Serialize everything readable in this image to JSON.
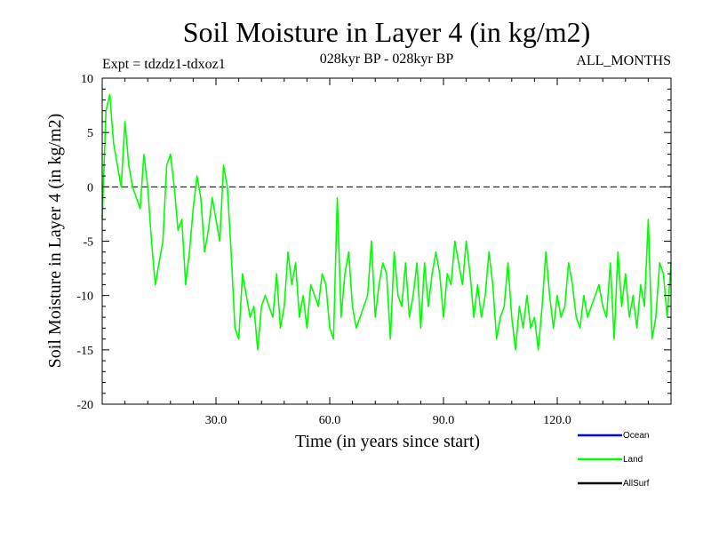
{
  "chart_data": {
    "type": "line",
    "title": "Soil Moisture in Layer 4 (in kg/m2)",
    "subtitle_left": "Expt = tdzdz1-tdxoz1",
    "subtitle_center": "028kyr BP - 028kyr BP",
    "subtitle_right": "ALL_MONTHS",
    "xlabel": "Time (in years since start)",
    "ylabel": "Soil Moisture in Layer 4 (in kg/m2)",
    "xlim": [
      0,
      150
    ],
    "ylim": [
      -20,
      10
    ],
    "x_ticks": [
      30,
      60,
      90,
      120
    ],
    "x_tick_labels": [
      "30.0",
      "60.0",
      "90.0",
      "120.0"
    ],
    "y_ticks": [
      -20,
      -15,
      -10,
      -5,
      0,
      5,
      10
    ],
    "y_tick_labels": [
      "-20",
      "-15",
      "-10",
      "-5",
      "0",
      "5",
      "10"
    ],
    "reference_line": 0,
    "legend_position": "bottom-right",
    "series": [
      {
        "name": "Ocean",
        "color": "#0000ff",
        "values": []
      },
      {
        "name": "Land",
        "color": "#00ff00",
        "x_start": 0,
        "x_step": 1,
        "values": [
          -3,
          7,
          8.5,
          4,
          2,
          0,
          6,
          2,
          0,
          -1,
          -2,
          3,
          0,
          -5,
          -9,
          -7,
          -5,
          2,
          3,
          0,
          -4,
          -3,
          -9,
          -6,
          -2,
          1,
          -1,
          -6,
          -4,
          -1,
          -3,
          -5,
          2,
          0,
          -6,
          -13,
          -14,
          -8,
          -10,
          -12,
          -11,
          -15,
          -11,
          -10,
          -11,
          -12,
          -8,
          -13,
          -11,
          -6,
          -9,
          -7,
          -12,
          -10,
          -13,
          -9,
          -10,
          -11,
          -8,
          -9,
          -13,
          -14,
          -1,
          -12,
          -8,
          -6,
          -11,
          -13,
          -12,
          -11,
          -10,
          -5,
          -12,
          -9,
          -7,
          -8,
          -14,
          -6,
          -10,
          -11,
          -7,
          -12,
          -10,
          -7,
          -13,
          -7,
          -11,
          -8,
          -6,
          -8,
          -12,
          -8,
          -9,
          -5,
          -7,
          -9,
          -5,
          -8,
          -12,
          -9,
          -12,
          -10,
          -6,
          -9,
          -14,
          -12,
          -11,
          -7,
          -12,
          -15,
          -11,
          -13,
          -10,
          -13,
          -12,
          -15,
          -11,
          -6,
          -10,
          -13,
          -10,
          -12,
          -11,
          -7,
          -9,
          -12,
          -13,
          -10,
          -12,
          -11,
          -10,
          -9,
          -11,
          -12,
          -7,
          -14,
          -6,
          -11,
          -8,
          -12,
          -10,
          -13,
          -9,
          -11,
          -3,
          -14,
          -12,
          -7,
          -8,
          -12,
          -7
        ]
      },
      {
        "name": "AllSurf",
        "color": "#000000",
        "values": []
      }
    ]
  }
}
